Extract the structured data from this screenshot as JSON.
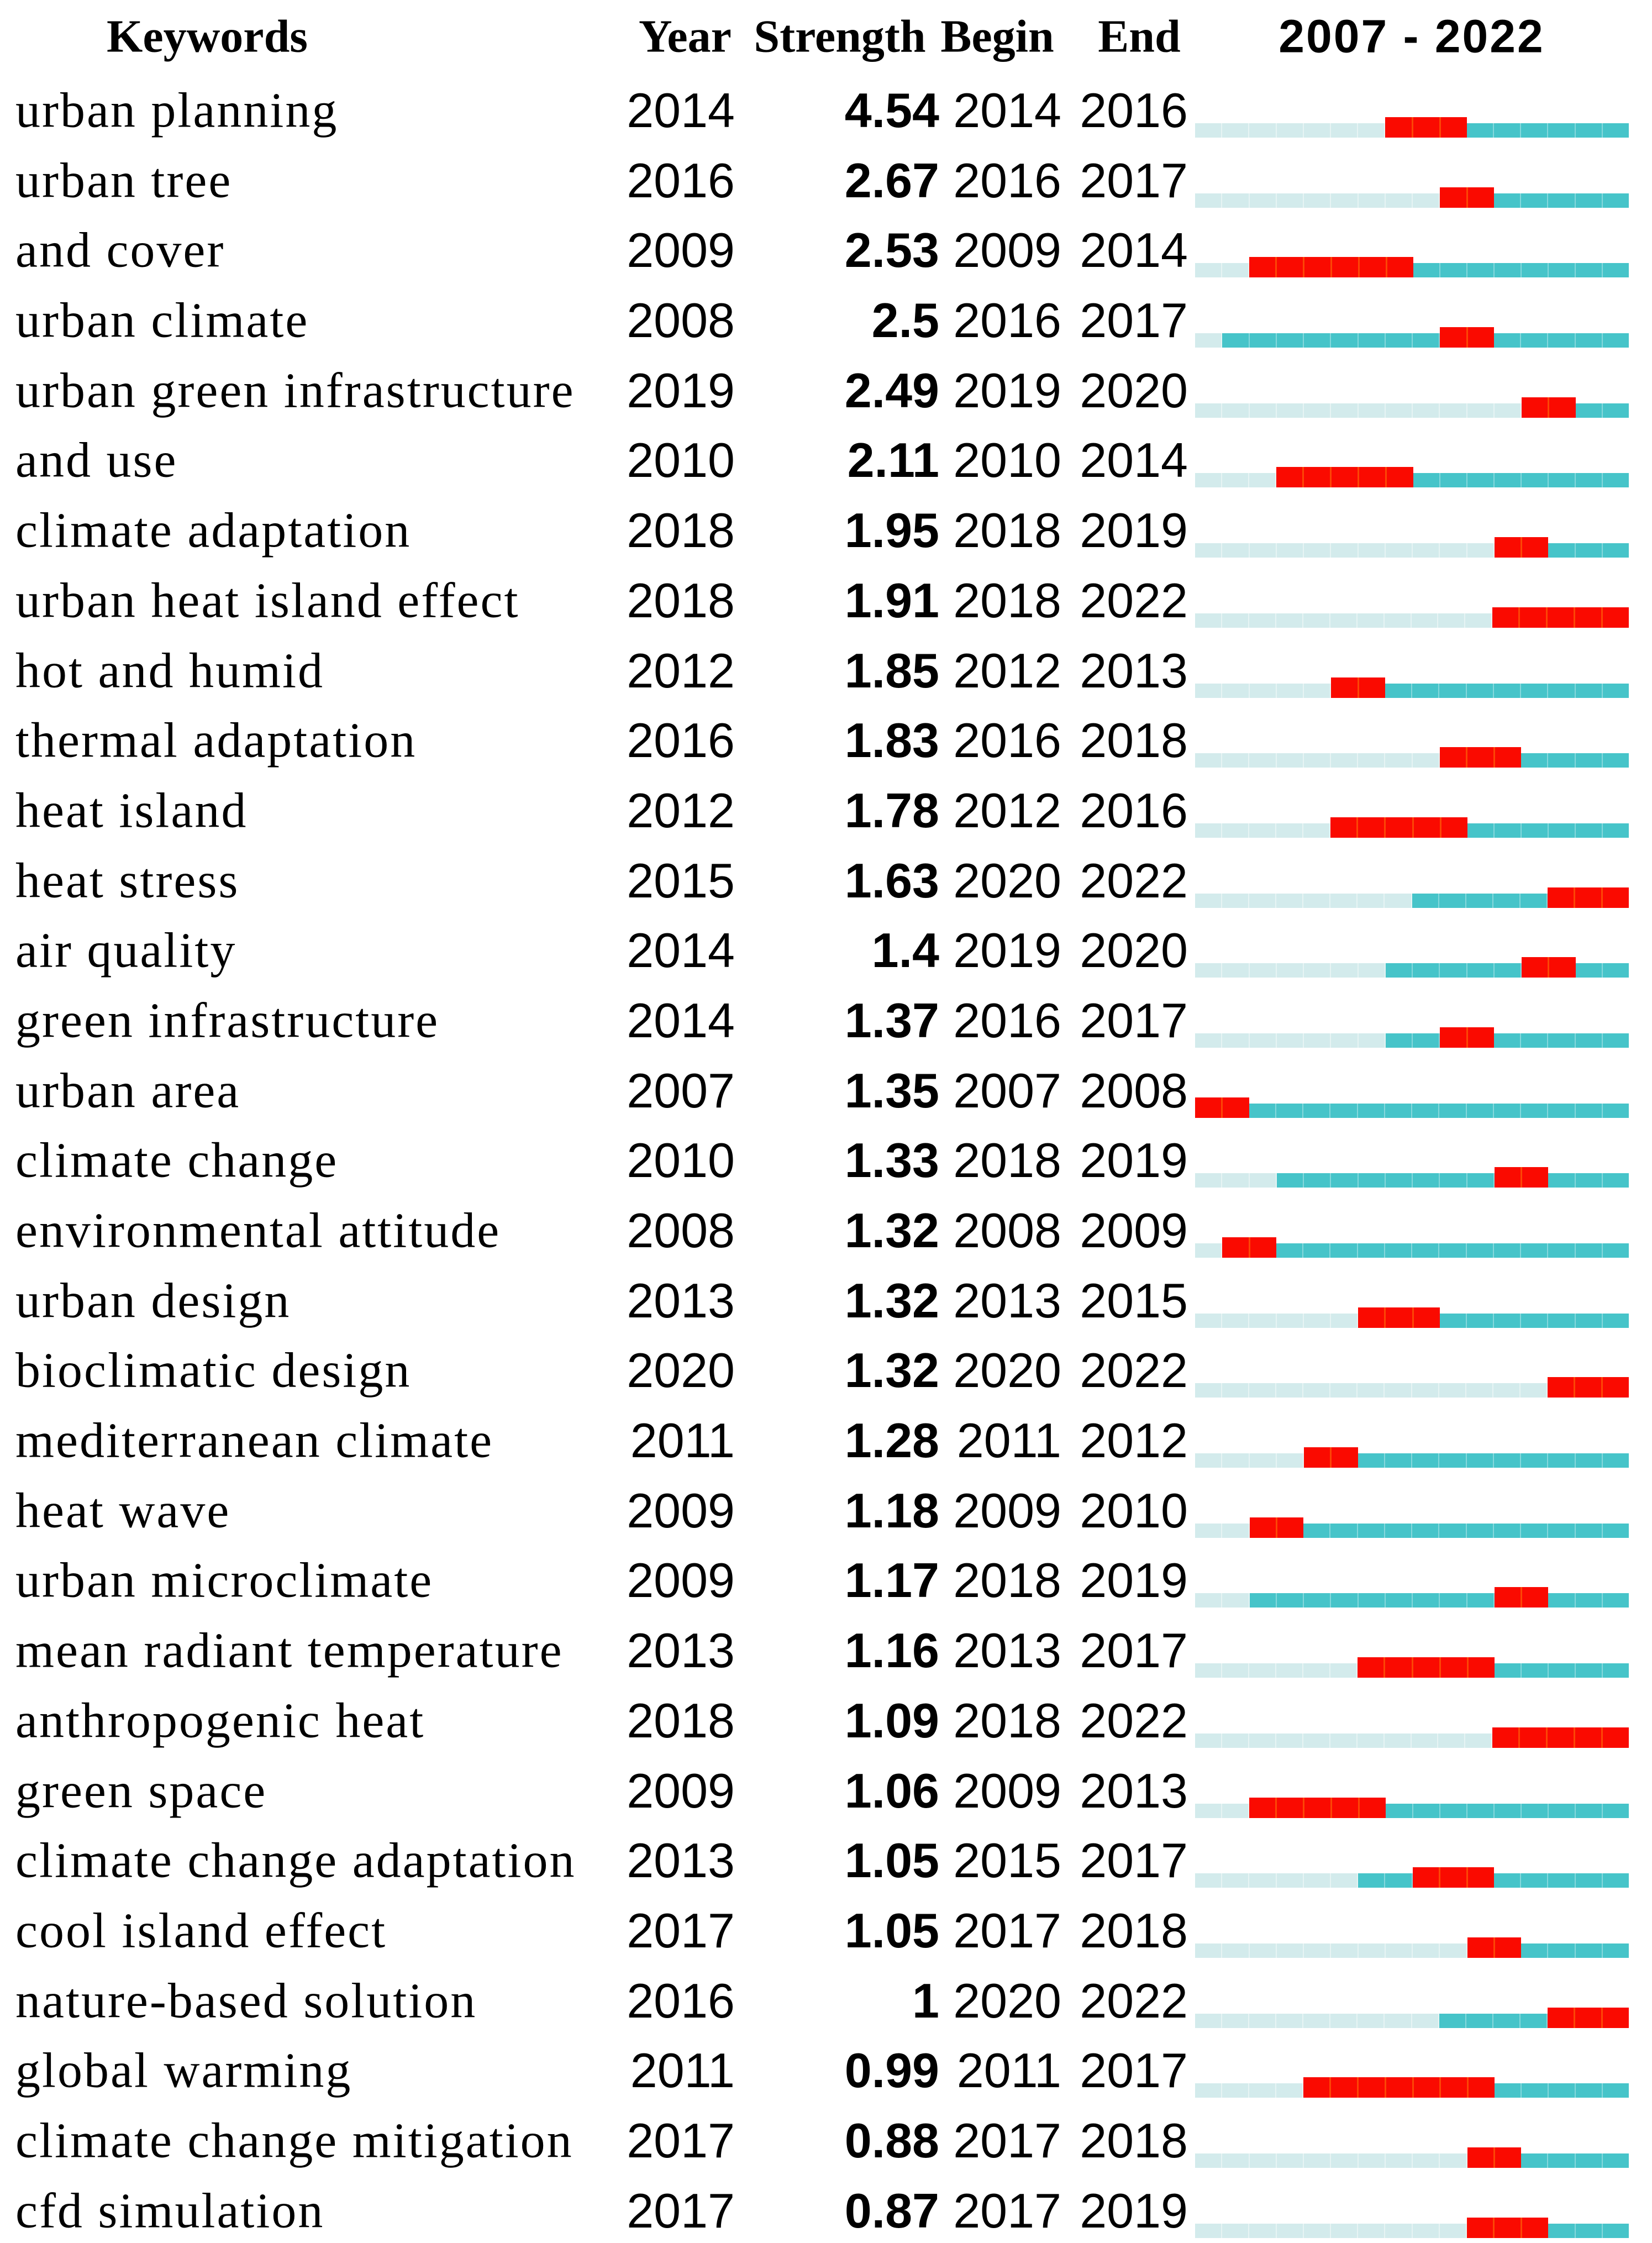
{
  "header": {
    "keywords": "Keywords",
    "year": "Year",
    "strength": "Strength",
    "begin": "Begin",
    "end": "End",
    "range": "2007 - 2022"
  },
  "chart_data": {
    "type": "table",
    "columns": [
      "Keywords",
      "Year",
      "Strength",
      "Begin",
      "End",
      "2007 - 2022"
    ],
    "year_range": [
      2007,
      2022
    ],
    "legend_note": "pale = before first appearance year, teal = active, red = burst interval (Begin–End)",
    "colors": {
      "inactive": "#d3ebec",
      "active": "#46c4c9",
      "burst": "#fa0a00"
    },
    "rows": [
      {
        "keyword": "urban planning",
        "year": 2014,
        "strength": "4.54",
        "begin": 2014,
        "end": 2016
      },
      {
        "keyword": "urban tree",
        "year": 2016,
        "strength": "2.67",
        "begin": 2016,
        "end": 2017
      },
      {
        "keyword": "and cover",
        "year": 2009,
        "strength": "2.53",
        "begin": 2009,
        "end": 2014
      },
      {
        "keyword": "urban climate",
        "year": 2008,
        "strength": "2.5",
        "begin": 2016,
        "end": 2017
      },
      {
        "keyword": "urban green infrastructure",
        "year": 2019,
        "strength": "2.49",
        "begin": 2019,
        "end": 2020
      },
      {
        "keyword": "and use",
        "year": 2010,
        "strength": "2.11",
        "begin": 2010,
        "end": 2014
      },
      {
        "keyword": "climate adaptation",
        "year": 2018,
        "strength": "1.95",
        "begin": 2018,
        "end": 2019
      },
      {
        "keyword": "urban heat island effect",
        "year": 2018,
        "strength": "1.91",
        "begin": 2018,
        "end": 2022
      },
      {
        "keyword": "hot and humid",
        "year": 2012,
        "strength": "1.85",
        "begin": 2012,
        "end": 2013
      },
      {
        "keyword": "thermal adaptation",
        "year": 2016,
        "strength": "1.83",
        "begin": 2016,
        "end": 2018
      },
      {
        "keyword": "heat island",
        "year": 2012,
        "strength": "1.78",
        "begin": 2012,
        "end": 2016
      },
      {
        "keyword": "heat stress",
        "year": 2015,
        "strength": "1.63",
        "begin": 2020,
        "end": 2022
      },
      {
        "keyword": "air quality",
        "year": 2014,
        "strength": "1.4",
        "begin": 2019,
        "end": 2020
      },
      {
        "keyword": "green infrastructure",
        "year": 2014,
        "strength": "1.37",
        "begin": 2016,
        "end": 2017
      },
      {
        "keyword": "urban area",
        "year": 2007,
        "strength": "1.35",
        "begin": 2007,
        "end": 2008
      },
      {
        "keyword": "climate change",
        "year": 2010,
        "strength": "1.33",
        "begin": 2018,
        "end": 2019
      },
      {
        "keyword": "environmental attitude",
        "year": 2008,
        "strength": "1.32",
        "begin": 2008,
        "end": 2009
      },
      {
        "keyword": "urban design",
        "year": 2013,
        "strength": "1.32",
        "begin": 2013,
        "end": 2015
      },
      {
        "keyword": "bioclimatic design",
        "year": 2020,
        "strength": "1.32",
        "begin": 2020,
        "end": 2022
      },
      {
        "keyword": "mediterranean climate",
        "year": 2011,
        "strength": "1.28",
        "begin": 2011,
        "end": 2012
      },
      {
        "keyword": "heat wave",
        "year": 2009,
        "strength": "1.18",
        "begin": 2009,
        "end": 2010
      },
      {
        "keyword": "urban microclimate",
        "year": 2009,
        "strength": "1.17",
        "begin": 2018,
        "end": 2019
      },
      {
        "keyword": "mean radiant temperature",
        "year": 2013,
        "strength": "1.16",
        "begin": 2013,
        "end": 2017
      },
      {
        "keyword": "anthropogenic heat",
        "year": 2018,
        "strength": "1.09",
        "begin": 2018,
        "end": 2022
      },
      {
        "keyword": "green space",
        "year": 2009,
        "strength": "1.06",
        "begin": 2009,
        "end": 2013
      },
      {
        "keyword": "climate change adaptation",
        "year": 2013,
        "strength": "1.05",
        "begin": 2015,
        "end": 2017
      },
      {
        "keyword": "cool island effect",
        "year": 2017,
        "strength": "1.05",
        "begin": 2017,
        "end": 2018
      },
      {
        "keyword": "nature-based solution",
        "year": 2016,
        "strength": "1",
        "begin": 2020,
        "end": 2022
      },
      {
        "keyword": "global warming",
        "year": 2011,
        "strength": "0.99",
        "begin": 2011,
        "end": 2017
      },
      {
        "keyword": "climate change mitigation",
        "year": 2017,
        "strength": "0.88",
        "begin": 2017,
        "end": 2018
      },
      {
        "keyword": "cfd simulation",
        "year": 2017,
        "strength": "0.87",
        "begin": 2017,
        "end": 2019
      }
    ]
  }
}
